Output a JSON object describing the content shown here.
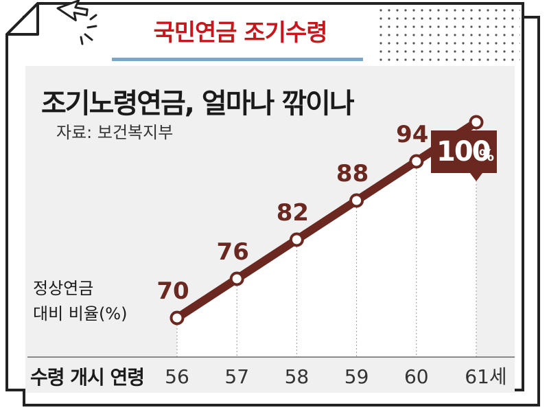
{
  "header": {
    "title": "국민연금 조기수령"
  },
  "colors": {
    "accent": "#6b2820",
    "title": "#c8161d",
    "rule": "#7aa7c7"
  },
  "icons": {
    "cursor": "cursor-click-icon"
  },
  "chart_data": {
    "type": "line",
    "title": "조기노령연금, 얼마나 깎이나",
    "subtitle": "자료: 보건복지부",
    "ylabel": [
      "정상연금",
      "대비 비율(%)"
    ],
    "xlabel": "수령 개시 연령",
    "categories": [
      "56",
      "57",
      "58",
      "59",
      "60",
      "61세"
    ],
    "values": [
      70,
      76,
      82,
      88,
      94,
      100
    ],
    "point_labels": [
      "70",
      "76",
      "82",
      "88",
      "94",
      "100"
    ],
    "highlight_unit": "%",
    "ylim": [
      64,
      104
    ],
    "grid": false
  }
}
